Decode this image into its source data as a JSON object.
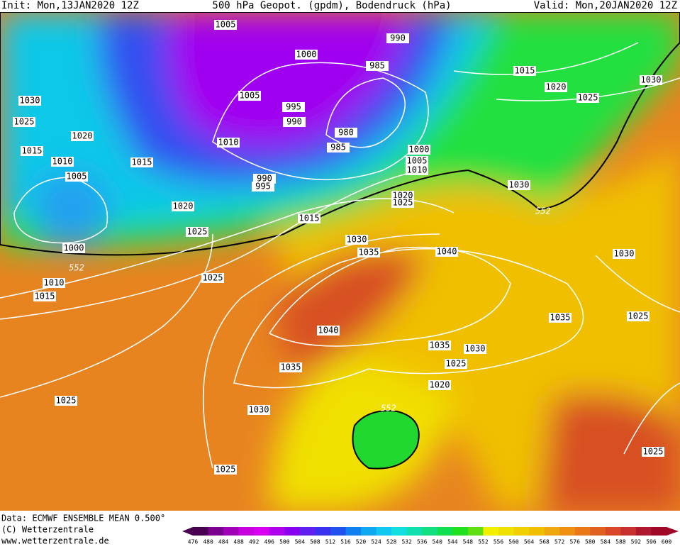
{
  "header": {
    "init": "Init: Mon,13JAN2020 12Z",
    "title": "500 hPa Geopot. (gpdm), Bodendruck (hPa)",
    "valid": "Valid: Mon,20JAN2020 12Z"
  },
  "map": {
    "isobar_labels": [
      1005,
      1000,
      990,
      985,
      1015,
      1020,
      1025,
      1030,
      1030,
      1025,
      1020,
      1015,
      1010,
      1005,
      1015,
      1005,
      995,
      990,
      980,
      985,
      1010,
      990,
      995,
      1000,
      1005,
      1010,
      1020,
      1030,
      552,
      1020,
      1025,
      1015,
      1025,
      1030,
      1035,
      1040,
      1000,
      552,
      1030,
      1010,
      1015,
      1025,
      1035,
      1025,
      1040,
      1035,
      1030,
      1035,
      1025,
      1020,
      552,
      1025,
      1030,
      1025,
      1025
    ]
  },
  "footer": {
    "data": "Data: ECMWF ENSEMBLE MEAN 0.500°",
    "copyright": "(C) Wetterzentrale",
    "url": "www.wetterzentrale.de"
  },
  "legend": {
    "values": [
      476,
      480,
      484,
      488,
      492,
      496,
      500,
      504,
      508,
      512,
      516,
      520,
      524,
      528,
      532,
      536,
      540,
      544,
      548,
      552,
      556,
      560,
      564,
      568,
      572,
      576,
      580,
      584,
      588,
      592,
      596,
      600
    ],
    "colors": [
      "#4a0050",
      "#7a0090",
      "#a000b8",
      "#c800e0",
      "#d800f0",
      "#b000f0",
      "#8800f0",
      "#6020f0",
      "#3a30f0",
      "#2050f0",
      "#1080f0",
      "#10a8f0",
      "#10c8f0",
      "#10e0e0",
      "#10e0b0",
      "#10e080",
      "#10e050",
      "#20e020",
      "#60e010",
      "#f0f000",
      "#f0e000",
      "#f0d000",
      "#f0c000",
      "#f0a810",
      "#f09010",
      "#e87818",
      "#e06020",
      "#d84828",
      "#c83030",
      "#b01830",
      "#a00828"
    ]
  }
}
